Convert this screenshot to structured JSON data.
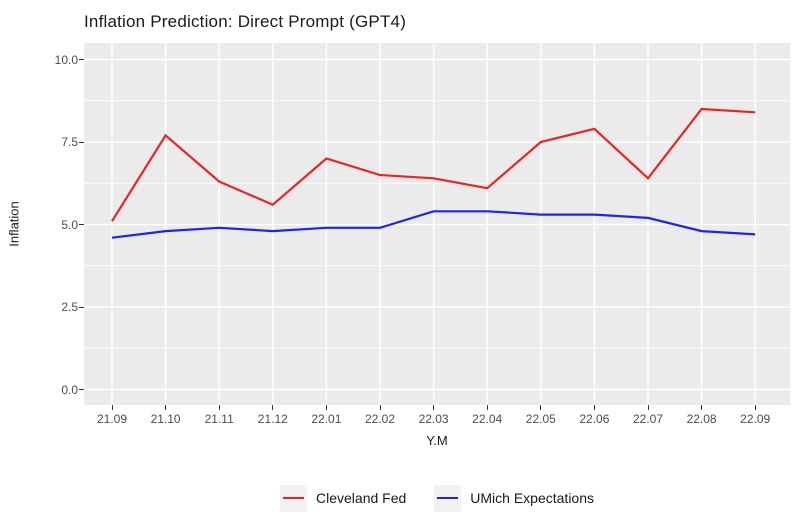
{
  "title": "Inflation Prediction: Direct Prompt (GPT4)",
  "chart_data": {
    "type": "line",
    "title": "Inflation Prediction: Direct Prompt (GPT4)",
    "xlabel": "Y.M",
    "ylabel": "Inflation",
    "categories": [
      "21.09",
      "21.10",
      "21.11",
      "21.12",
      "22.01",
      "22.02",
      "22.03",
      "22.04",
      "22.05",
      "22.06",
      "22.07",
      "22.08",
      "22.09"
    ],
    "series": [
      {
        "name": "Cleveland Fed",
        "color": "#EE2222",
        "values": [
          5.1,
          7.7,
          6.3,
          5.6,
          7.0,
          6.5,
          6.4,
          6.1,
          7.5,
          7.9,
          6.4,
          8.5,
          8.4
        ]
      },
      {
        "name": "UMich Expectations",
        "color": "#2222EE",
        "values": [
          4.6,
          4.8,
          4.9,
          4.8,
          4.9,
          4.9,
          5.4,
          5.4,
          5.3,
          5.3,
          5.2,
          4.8,
          4.7
        ]
      }
    ],
    "y_major_ticks": [
      0.0,
      2.5,
      5.0,
      7.5,
      10.0
    ],
    "y_tick_labels": [
      "0.0",
      "2.5",
      "5.0",
      "7.5",
      "10.0"
    ],
    "y_minor_ticks": [
      1.25,
      3.75,
      6.25,
      8.75
    ],
    "ylim": [
      -0.5,
      10.5
    ],
    "grid": true,
    "legend_position": "bottom",
    "colors": {
      "panel_bg": "#EBEBEB",
      "gridline": "#FFFFFF",
      "tick_mark": "#333333",
      "tick_label": "#4D4D4D",
      "legend_key_bg": "#F2F2F2"
    }
  }
}
